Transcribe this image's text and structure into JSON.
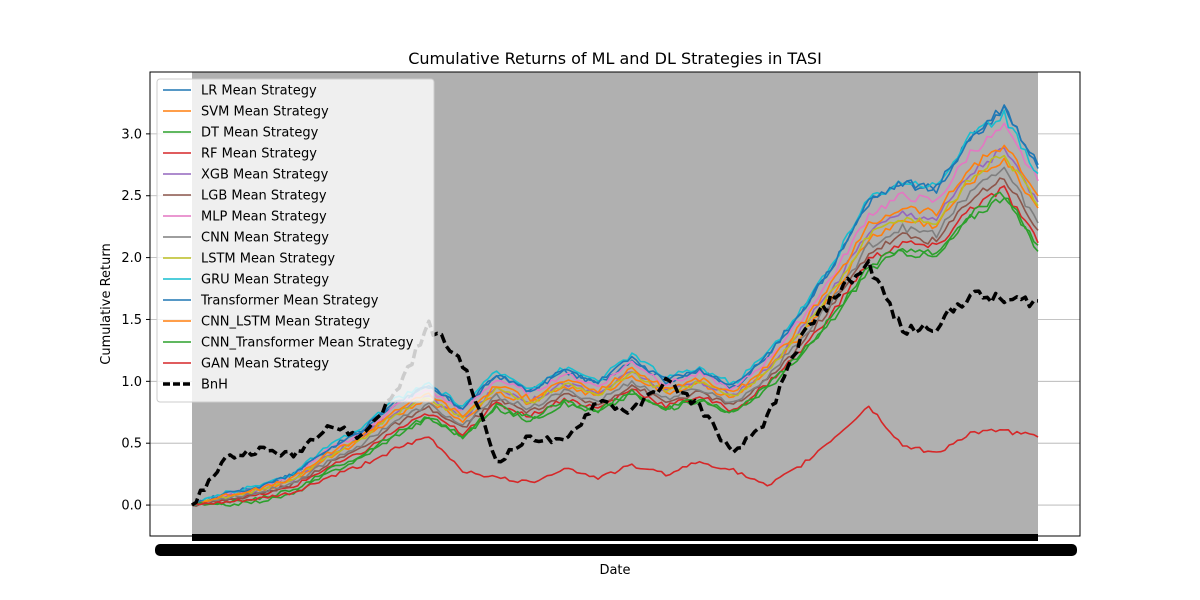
{
  "chart_data": {
    "type": "line",
    "title": "Cumulative Returns of ML and DL Strategies in TASI",
    "xlabel": "Date",
    "ylabel": "Cumulative Return",
    "ylim": [
      -0.25,
      3.5
    ],
    "yticks": [
      "0.0",
      "0.5",
      "1.0",
      "1.5",
      "2.0",
      "2.5",
      "3.0"
    ],
    "grid": true,
    "legend_position": "upper-left",
    "x": [
      0,
      4,
      8,
      12,
      16,
      20,
      24,
      28,
      32,
      36,
      40,
      44,
      48,
      52,
      56,
      60,
      64,
      68,
      72,
      76,
      80,
      84,
      88,
      92,
      96,
      100
    ],
    "series": [
      {
        "name": "LR Mean Strategy",
        "color": "#1f77b4",
        "style": "solid",
        "values": [
          0.0,
          0.1,
          0.15,
          0.25,
          0.45,
          0.6,
          0.82,
          0.95,
          0.78,
          1.05,
          0.92,
          1.08,
          0.98,
          1.18,
          1.0,
          1.08,
          0.95,
          1.2,
          1.55,
          1.95,
          2.45,
          2.6,
          2.55,
          2.95,
          3.2,
          2.75
        ]
      },
      {
        "name": "SVM Mean Strategy",
        "color": "#ff7f0e",
        "style": "solid",
        "values": [
          0.0,
          0.07,
          0.11,
          0.2,
          0.38,
          0.52,
          0.72,
          0.85,
          0.68,
          0.92,
          0.82,
          0.96,
          0.88,
          1.05,
          0.9,
          0.98,
          0.86,
          1.08,
          1.38,
          1.72,
          2.15,
          2.3,
          2.26,
          2.62,
          2.8,
          2.4
        ]
      },
      {
        "name": "DT Mean Strategy",
        "color": "#2ca02c",
        "style": "solid",
        "values": [
          0.0,
          0.0,
          0.03,
          0.09,
          0.25,
          0.38,
          0.56,
          0.7,
          0.55,
          0.78,
          0.68,
          0.82,
          0.75,
          0.9,
          0.77,
          0.85,
          0.74,
          0.94,
          1.2,
          1.52,
          1.9,
          2.05,
          2.0,
          2.32,
          2.5,
          2.05
        ]
      },
      {
        "name": "RF Mean Strategy",
        "color": "#d62728",
        "style": "solid",
        "values": [
          0.0,
          0.05,
          0.08,
          0.15,
          0.3,
          0.42,
          0.6,
          0.74,
          0.58,
          0.82,
          0.72,
          0.86,
          0.78,
          0.94,
          0.8,
          0.88,
          0.76,
          0.98,
          1.25,
          1.58,
          1.98,
          2.12,
          2.08,
          2.4,
          2.55,
          2.12
        ]
      },
      {
        "name": "XGB Mean Strategy",
        "color": "#9467bd",
        "style": "solid",
        "values": [
          0.0,
          0.08,
          0.12,
          0.21,
          0.4,
          0.54,
          0.75,
          0.88,
          0.7,
          0.95,
          0.84,
          0.99,
          0.9,
          1.08,
          0.92,
          1.0,
          0.88,
          1.1,
          1.42,
          1.78,
          2.22,
          2.36,
          2.32,
          2.68,
          2.88,
          2.45
        ]
      },
      {
        "name": "LGB Mean Strategy",
        "color": "#8c564b",
        "style": "solid",
        "values": [
          0.0,
          0.04,
          0.09,
          0.17,
          0.33,
          0.46,
          0.65,
          0.78,
          0.62,
          0.85,
          0.75,
          0.89,
          0.81,
          0.97,
          0.83,
          0.91,
          0.8,
          1.01,
          1.3,
          1.64,
          2.04,
          2.18,
          2.13,
          2.48,
          2.65,
          2.22
        ]
      },
      {
        "name": "MLP Mean Strategy",
        "color": "#e377c2",
        "style": "solid",
        "values": [
          0.0,
          0.09,
          0.14,
          0.24,
          0.44,
          0.58,
          0.8,
          0.93,
          0.76,
          1.02,
          0.9,
          1.06,
          0.96,
          1.16,
          0.98,
          1.06,
          0.93,
          1.17,
          1.5,
          1.88,
          2.35,
          2.5,
          2.45,
          2.85,
          3.05,
          2.62
        ]
      },
      {
        "name": "CNN Mean Strategy",
        "color": "#7f7f7f",
        "style": "solid",
        "values": [
          0.0,
          0.06,
          0.1,
          0.18,
          0.35,
          0.49,
          0.68,
          0.81,
          0.64,
          0.88,
          0.78,
          0.92,
          0.84,
          1.0,
          0.86,
          0.94,
          0.82,
          1.04,
          1.34,
          1.68,
          2.1,
          2.24,
          2.19,
          2.54,
          2.72,
          2.28
        ]
      },
      {
        "name": "LSTM Mean Strategy",
        "color": "#bcbd22",
        "style": "solid",
        "values": [
          0.0,
          0.07,
          0.12,
          0.21,
          0.39,
          0.53,
          0.74,
          0.87,
          0.7,
          0.94,
          0.83,
          0.98,
          0.89,
          1.07,
          0.91,
          0.99,
          0.87,
          1.09,
          1.4,
          1.75,
          2.18,
          2.32,
          2.28,
          2.64,
          2.84,
          2.42
        ]
      },
      {
        "name": "GRU Mean Strategy",
        "color": "#17becf",
        "style": "solid",
        "values": [
          0.0,
          0.1,
          0.16,
          0.26,
          0.47,
          0.62,
          0.85,
          0.98,
          0.8,
          1.08,
          0.95,
          1.11,
          1.01,
          1.22,
          1.03,
          1.11,
          0.98,
          1.23,
          1.58,
          1.98,
          2.48,
          2.62,
          2.58,
          2.98,
          3.15,
          2.68
        ]
      },
      {
        "name": "Transformer Mean Strategy",
        "color": "#1f77b4",
        "style": "solid",
        "values": [
          0.0,
          0.09,
          0.15,
          0.25,
          0.45,
          0.6,
          0.83,
          0.96,
          0.78,
          1.05,
          0.93,
          1.09,
          0.99,
          1.19,
          1.01,
          1.09,
          0.96,
          1.21,
          1.56,
          1.96,
          2.46,
          2.6,
          2.56,
          2.96,
          3.22,
          2.72
        ]
      },
      {
        "name": "CNN_LSTM Mean Strategy",
        "color": "#ff7f0e",
        "style": "solid",
        "values": [
          0.0,
          0.08,
          0.13,
          0.22,
          0.41,
          0.55,
          0.77,
          0.9,
          0.72,
          0.97,
          0.86,
          1.01,
          0.92,
          1.1,
          0.94,
          1.02,
          0.9,
          1.13,
          1.45,
          1.82,
          2.26,
          2.41,
          2.36,
          2.73,
          2.92,
          2.5
        ]
      },
      {
        "name": "CNN_Transformer Mean Strategy",
        "color": "#2ca02c",
        "style": "solid",
        "values": [
          0.0,
          0.02,
          0.06,
          0.12,
          0.28,
          0.4,
          0.58,
          0.72,
          0.56,
          0.8,
          0.7,
          0.84,
          0.76,
          0.92,
          0.78,
          0.86,
          0.75,
          0.96,
          1.22,
          1.55,
          1.94,
          2.08,
          2.04,
          2.36,
          2.52,
          2.1
        ]
      },
      {
        "name": "GAN Mean Strategy",
        "color": "#d62728",
        "style": "solid",
        "values": [
          0.0,
          0.02,
          0.05,
          0.1,
          0.22,
          0.32,
          0.45,
          0.55,
          0.28,
          0.22,
          0.18,
          0.3,
          0.22,
          0.32,
          0.25,
          0.35,
          0.28,
          0.15,
          0.32,
          0.55,
          0.8,
          0.48,
          0.42,
          0.58,
          0.6,
          0.55
        ]
      },
      {
        "name": "BnH",
        "color": "#000000",
        "style": "dashed",
        "values": [
          0.0,
          0.38,
          0.45,
          0.4,
          0.65,
          0.55,
          0.9,
          1.45,
          1.15,
          0.35,
          0.55,
          0.5,
          0.85,
          0.75,
          1.0,
          0.8,
          0.4,
          0.7,
          1.35,
          1.7,
          1.95,
          1.4,
          1.45,
          1.7,
          1.65,
          1.65
        ]
      }
    ]
  }
}
